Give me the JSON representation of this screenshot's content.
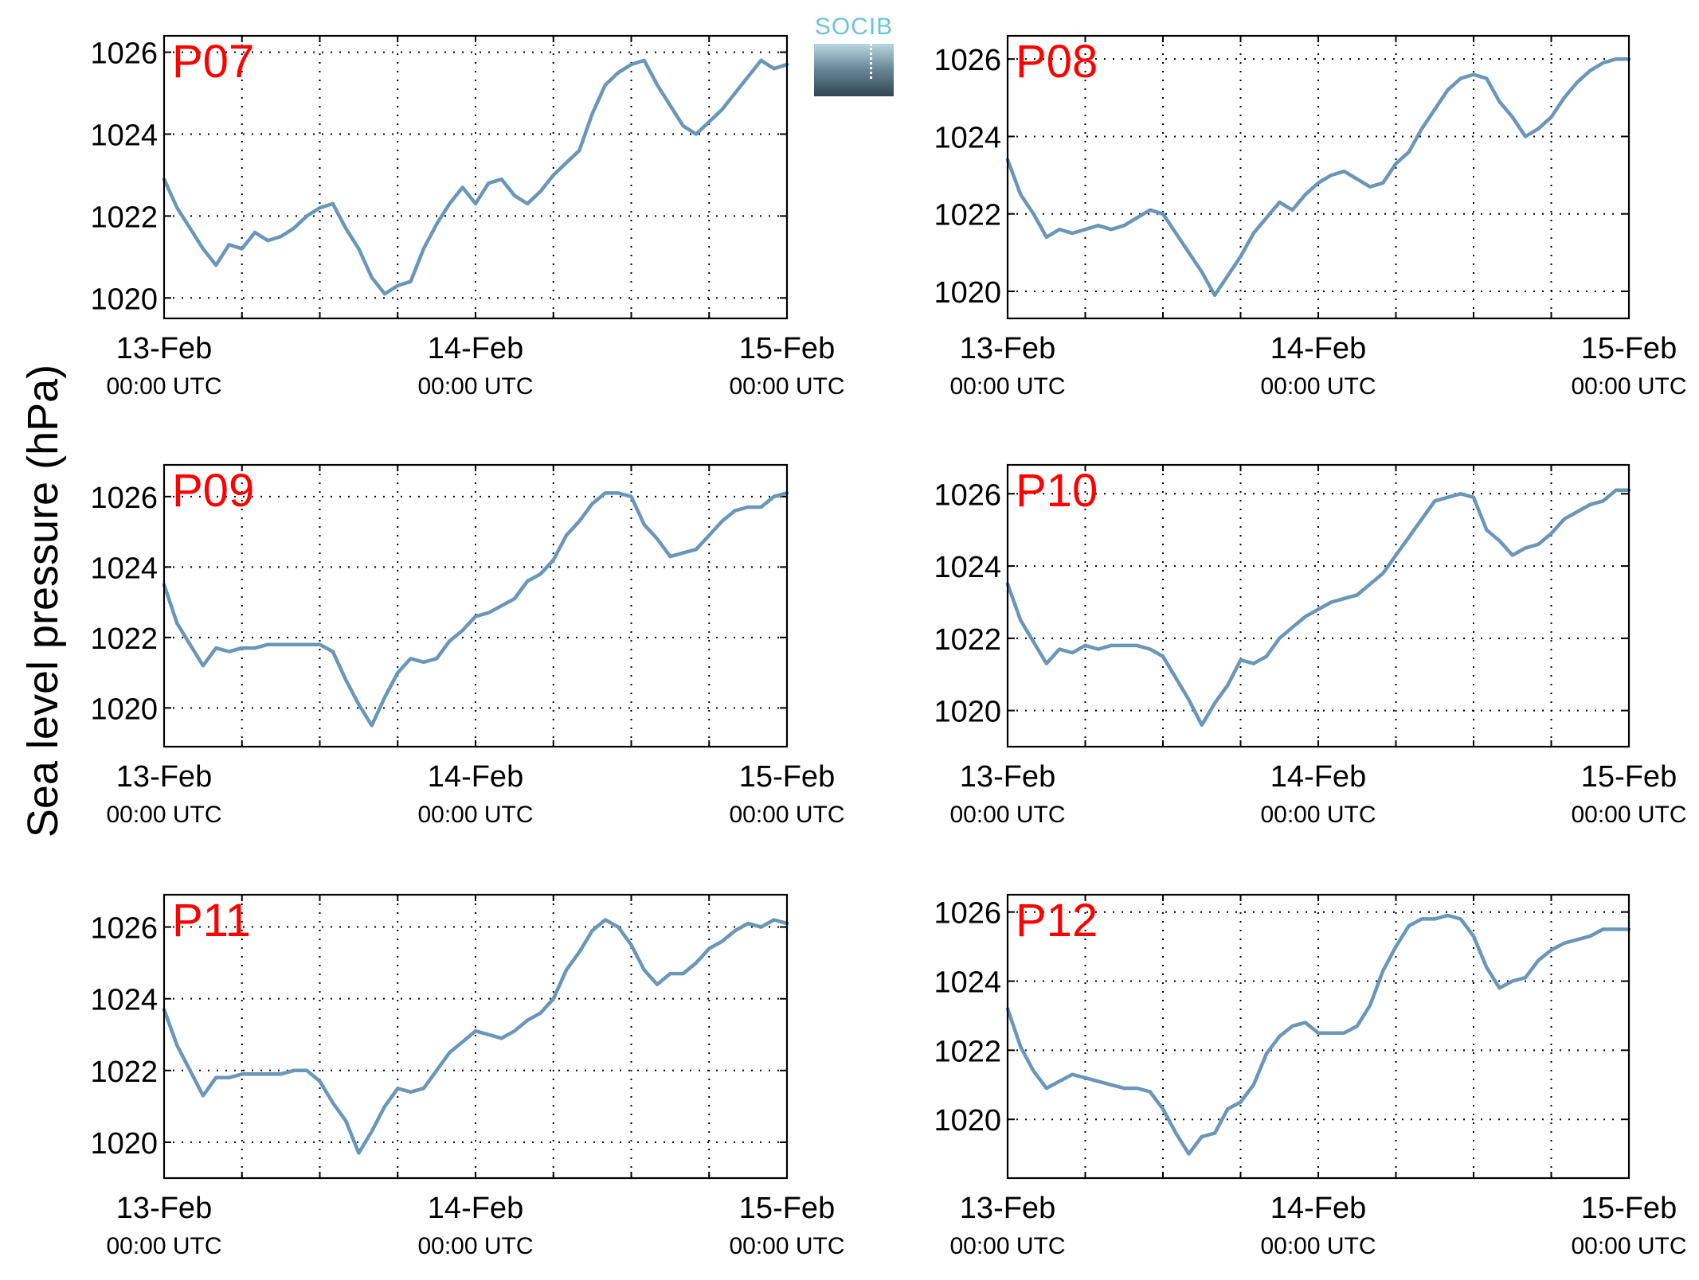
{
  "figure": {
    "ylabel": "Sea level pressure (hPa)",
    "logo_text": "SOCIB"
  },
  "colors": {
    "line": "#6a96b8",
    "station_label": "#ff0000",
    "axes": "#000000",
    "grid": "#000000"
  },
  "chart_data": [
    {
      "type": "line",
      "title": "P07",
      "ylim": [
        1019.5,
        1026.4
      ],
      "grid": true,
      "yticks": [
        1020,
        1022,
        1024,
        1026
      ],
      "x_start": "13-Feb 00:00 UTC",
      "x_end": "15-Feb 00:00 UTC",
      "xtick_labels": [
        [
          "13-Feb",
          "00:00 UTC"
        ],
        [
          "14-Feb",
          "00:00 UTC"
        ],
        [
          "15-Feb",
          "00:00 UTC"
        ]
      ],
      "x_hours": [
        0,
        1,
        2,
        3,
        4,
        5,
        6,
        7,
        8,
        9,
        10,
        11,
        12,
        13,
        14,
        15,
        16,
        17,
        18,
        19,
        20,
        21,
        22,
        23,
        24,
        25,
        26,
        27,
        28,
        29,
        30,
        31,
        32,
        33,
        34,
        35,
        36,
        37,
        38,
        39,
        40,
        41,
        42,
        43,
        44,
        45,
        46,
        47,
        48
      ],
      "values": [
        1022.9,
        1022.2,
        1021.7,
        1021.2,
        1020.8,
        1021.3,
        1021.2,
        1021.6,
        1021.4,
        1021.5,
        1021.7,
        1022.0,
        1022.2,
        1022.3,
        1021.7,
        1021.2,
        1020.5,
        1020.1,
        1020.3,
        1020.4,
        1021.2,
        1021.8,
        1022.3,
        1022.7,
        1022.3,
        1022.8,
        1022.9,
        1022.5,
        1022.3,
        1022.6,
        1023.0,
        1023.3,
        1023.6,
        1024.5,
        1025.2,
        1025.5,
        1025.7,
        1025.8,
        1025.2,
        1024.7,
        1024.2,
        1024.0,
        1024.3,
        1024.6,
        1025.0,
        1025.4,
        1025.8,
        1025.6,
        1025.7
      ]
    },
    {
      "type": "line",
      "title": "P08",
      "ylim": [
        1019.3,
        1026.6
      ],
      "grid": true,
      "yticks": [
        1020,
        1022,
        1024,
        1026
      ],
      "x_start": "13-Feb 00:00 UTC",
      "x_end": "15-Feb 00:00 UTC",
      "xtick_labels": [
        [
          "13-Feb",
          "00:00 UTC"
        ],
        [
          "14-Feb",
          "00:00 UTC"
        ],
        [
          "15-Feb",
          "00:00 UTC"
        ]
      ],
      "x_hours": [
        0,
        1,
        2,
        3,
        4,
        5,
        6,
        7,
        8,
        9,
        10,
        11,
        12,
        13,
        14,
        15,
        16,
        17,
        18,
        19,
        20,
        21,
        22,
        23,
        24,
        25,
        26,
        27,
        28,
        29,
        30,
        31,
        32,
        33,
        34,
        35,
        36,
        37,
        38,
        39,
        40,
        41,
        42,
        43,
        44,
        45,
        46,
        47,
        48
      ],
      "values": [
        1023.4,
        1022.5,
        1022.0,
        1021.4,
        1021.6,
        1021.5,
        1021.6,
        1021.7,
        1021.6,
        1021.7,
        1021.9,
        1022.1,
        1022.0,
        1021.5,
        1021.0,
        1020.5,
        1019.9,
        1020.4,
        1020.9,
        1021.5,
        1021.9,
        1022.3,
        1022.1,
        1022.5,
        1022.8,
        1023.0,
        1023.1,
        1022.9,
        1022.7,
        1022.8,
        1023.3,
        1023.6,
        1024.2,
        1024.7,
        1025.2,
        1025.5,
        1025.6,
        1025.5,
        1024.9,
        1024.5,
        1024.0,
        1024.2,
        1024.5,
        1025.0,
        1025.4,
        1025.7,
        1025.9,
        1026.0,
        1026.0
      ]
    },
    {
      "type": "line",
      "title": "P09",
      "ylim": [
        1018.9,
        1026.9
      ],
      "grid": true,
      "yticks": [
        1020,
        1022,
        1024,
        1026
      ],
      "x_start": "13-Feb 00:00 UTC",
      "x_end": "15-Feb 00:00 UTC",
      "xtick_labels": [
        [
          "13-Feb",
          "00:00 UTC"
        ],
        [
          "14-Feb",
          "00:00 UTC"
        ],
        [
          "15-Feb",
          "00:00 UTC"
        ]
      ],
      "x_hours": [
        0,
        1,
        2,
        3,
        4,
        5,
        6,
        7,
        8,
        9,
        10,
        11,
        12,
        13,
        14,
        15,
        16,
        17,
        18,
        19,
        20,
        21,
        22,
        23,
        24,
        25,
        26,
        27,
        28,
        29,
        30,
        31,
        32,
        33,
        34,
        35,
        36,
        37,
        38,
        39,
        40,
        41,
        42,
        43,
        44,
        45,
        46,
        47,
        48
      ],
      "values": [
        1023.5,
        1022.4,
        1021.8,
        1021.2,
        1021.7,
        1021.6,
        1021.7,
        1021.7,
        1021.8,
        1021.8,
        1021.8,
        1021.8,
        1021.8,
        1021.6,
        1020.8,
        1020.1,
        1019.5,
        1020.3,
        1021.0,
        1021.4,
        1021.3,
        1021.4,
        1021.9,
        1022.2,
        1022.6,
        1022.7,
        1022.9,
        1023.1,
        1023.6,
        1023.8,
        1024.2,
        1024.9,
        1025.3,
        1025.8,
        1026.1,
        1026.1,
        1026.0,
        1025.2,
        1024.8,
        1024.3,
        1024.4,
        1024.5,
        1024.9,
        1025.3,
        1025.6,
        1025.7,
        1025.7,
        1026.0,
        1026.1
      ]
    },
    {
      "type": "line",
      "title": "P10",
      "ylim": [
        1019.0,
        1026.8
      ],
      "grid": true,
      "yticks": [
        1020,
        1022,
        1024,
        1026
      ],
      "x_start": "13-Feb 00:00 UTC",
      "x_end": "15-Feb 00:00 UTC",
      "xtick_labels": [
        [
          "13-Feb",
          "00:00 UTC"
        ],
        [
          "14-Feb",
          "00:00 UTC"
        ],
        [
          "15-Feb",
          "00:00 UTC"
        ]
      ],
      "x_hours": [
        0,
        1,
        2,
        3,
        4,
        5,
        6,
        7,
        8,
        9,
        10,
        11,
        12,
        13,
        14,
        15,
        16,
        17,
        18,
        19,
        20,
        21,
        22,
        23,
        24,
        25,
        26,
        27,
        28,
        29,
        30,
        31,
        32,
        33,
        34,
        35,
        36,
        37,
        38,
        39,
        40,
        41,
        42,
        43,
        44,
        45,
        46,
        47,
        48
      ],
      "values": [
        1023.5,
        1022.5,
        1021.9,
        1021.3,
        1021.7,
        1021.6,
        1021.8,
        1021.7,
        1021.8,
        1021.8,
        1021.8,
        1021.7,
        1021.5,
        1020.9,
        1020.3,
        1019.6,
        1020.2,
        1020.7,
        1021.4,
        1021.3,
        1021.5,
        1022.0,
        1022.3,
        1022.6,
        1022.8,
        1023.0,
        1023.1,
        1023.2,
        1023.5,
        1023.8,
        1024.3,
        1024.8,
        1025.3,
        1025.8,
        1025.9,
        1026.0,
        1025.9,
        1025.0,
        1024.7,
        1024.3,
        1024.5,
        1024.6,
        1024.9,
        1025.3,
        1025.5,
        1025.7,
        1025.8,
        1026.1,
        1026.1
      ]
    },
    {
      "type": "line",
      "title": "P11",
      "ylim": [
        1019.0,
        1026.9
      ],
      "grid": true,
      "yticks": [
        1020,
        1022,
        1024,
        1026
      ],
      "x_start": "13-Feb 00:00 UTC",
      "x_end": "15-Feb 00:00 UTC",
      "xtick_labels": [
        [
          "13-Feb",
          "00:00 UTC"
        ],
        [
          "14-Feb",
          "00:00 UTC"
        ],
        [
          "15-Feb",
          "00:00 UTC"
        ]
      ],
      "x_hours": [
        0,
        1,
        2,
        3,
        4,
        5,
        6,
        7,
        8,
        9,
        10,
        11,
        12,
        13,
        14,
        15,
        16,
        17,
        18,
        19,
        20,
        21,
        22,
        23,
        24,
        25,
        26,
        27,
        28,
        29,
        30,
        31,
        32,
        33,
        34,
        35,
        36,
        37,
        38,
        39,
        40,
        41,
        42,
        43,
        44,
        45,
        46,
        47,
        48
      ],
      "values": [
        1023.7,
        1022.7,
        1022.0,
        1021.3,
        1021.8,
        1021.8,
        1021.9,
        1021.9,
        1021.9,
        1021.9,
        1022.0,
        1022.0,
        1021.7,
        1021.1,
        1020.6,
        1019.7,
        1020.3,
        1021.0,
        1021.5,
        1021.4,
        1021.5,
        1022.0,
        1022.5,
        1022.8,
        1023.1,
        1023.0,
        1022.9,
        1023.1,
        1023.4,
        1023.6,
        1024.0,
        1024.8,
        1025.3,
        1025.9,
        1026.2,
        1026.0,
        1025.5,
        1024.8,
        1024.4,
        1024.7,
        1024.7,
        1025.0,
        1025.4,
        1025.6,
        1025.9,
        1026.1,
        1026.0,
        1026.2,
        1026.1
      ]
    },
    {
      "type": "line",
      "title": "P12",
      "ylim": [
        1018.3,
        1026.5
      ],
      "grid": true,
      "yticks": [
        1020,
        1022,
        1024,
        1026
      ],
      "x_start": "13-Feb 00:00 UTC",
      "x_end": "15-Feb 00:00 UTC",
      "xtick_labels": [
        [
          "13-Feb",
          "00:00 UTC"
        ],
        [
          "14-Feb",
          "00:00 UTC"
        ],
        [
          "15-Feb",
          "00:00 UTC"
        ]
      ],
      "x_hours": [
        0,
        1,
        2,
        3,
        4,
        5,
        6,
        7,
        8,
        9,
        10,
        11,
        12,
        13,
        14,
        15,
        16,
        17,
        18,
        19,
        20,
        21,
        22,
        23,
        24,
        25,
        26,
        27,
        28,
        29,
        30,
        31,
        32,
        33,
        34,
        35,
        36,
        37,
        38,
        39,
        40,
        41,
        42,
        43,
        44,
        45,
        46,
        47,
        48
      ],
      "values": [
        1023.2,
        1022.1,
        1021.4,
        1020.9,
        1021.1,
        1021.3,
        1021.2,
        1021.1,
        1021.0,
        1020.9,
        1020.9,
        1020.8,
        1020.3,
        1019.6,
        1019.0,
        1019.5,
        1019.6,
        1020.3,
        1020.5,
        1021.0,
        1021.9,
        1022.4,
        1022.7,
        1022.8,
        1022.5,
        1022.5,
        1022.5,
        1022.7,
        1023.3,
        1024.3,
        1025.0,
        1025.6,
        1025.8,
        1025.8,
        1025.9,
        1025.8,
        1025.3,
        1024.4,
        1023.8,
        1024.0,
        1024.1,
        1024.6,
        1024.9,
        1025.1,
        1025.2,
        1025.3,
        1025.5,
        1025.5,
        1025.5
      ]
    }
  ]
}
